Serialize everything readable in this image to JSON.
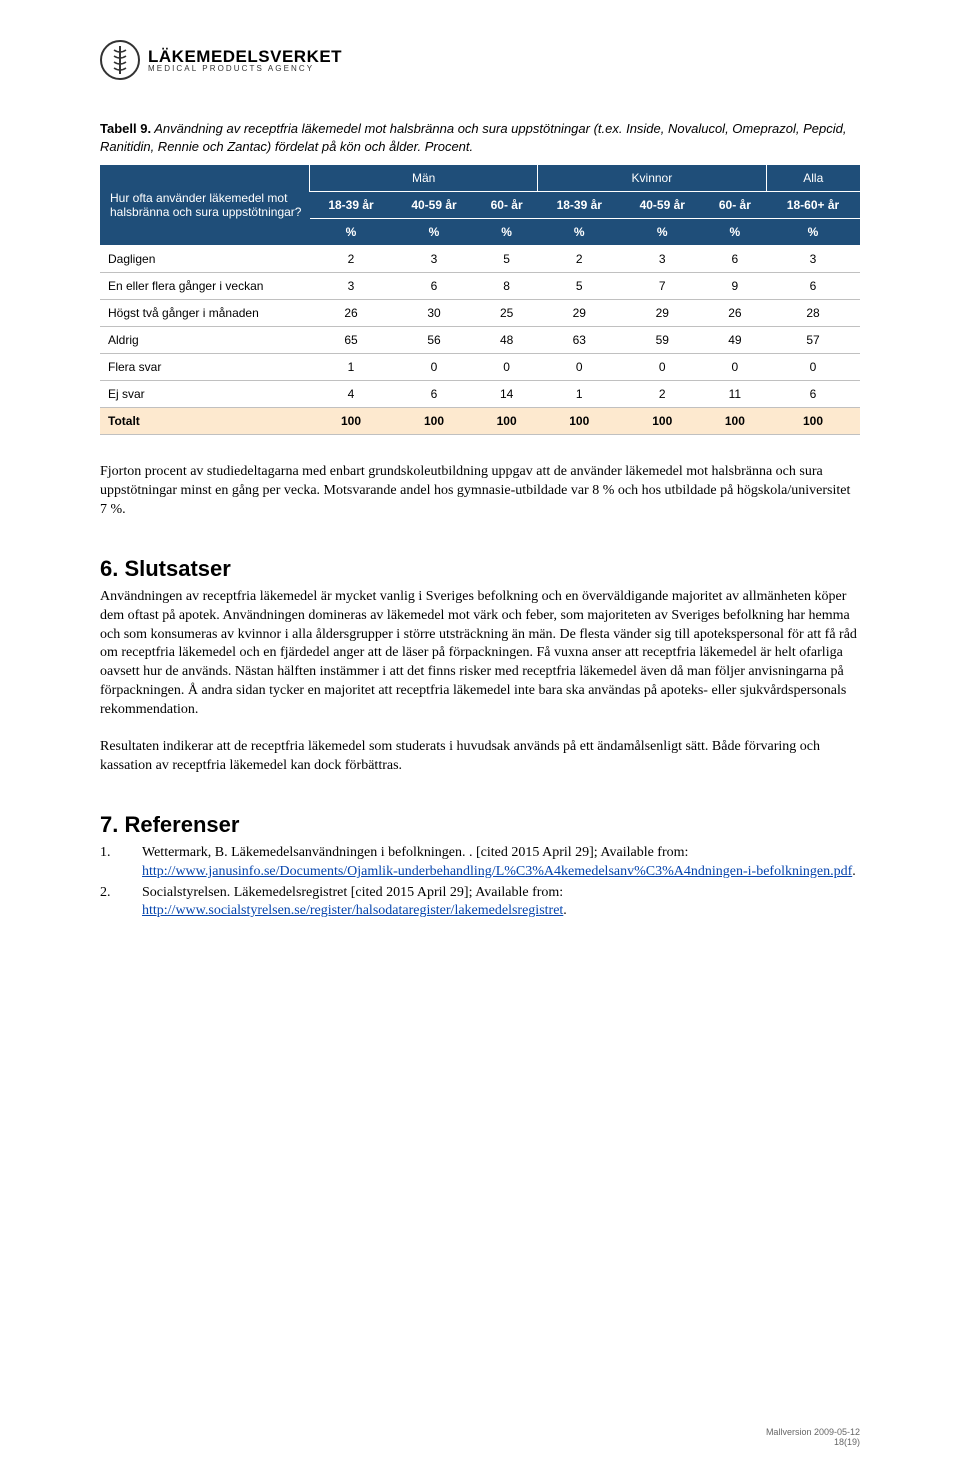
{
  "logo": {
    "brand": "LÄKEMEDELSVERKET",
    "sub": "MEDICAL PRODUCTS AGENCY"
  },
  "caption": {
    "bold": "Tabell 9.",
    "rest": " Användning av receptfria läkemedel mot halsbränna och sura uppstötningar (t.ex. Inside, Novalucol, Omeprazol, Pepcid, Ranitidin, Rennie och Zantac) fördelat på kön och ålder. Procent."
  },
  "table": {
    "header_bg": "#1f4e79",
    "header_fg": "#ffffff",
    "total_bg": "#fde9cf",
    "border_color": "#c0c0c0",
    "stub": "Hur ofta använder läkemedel mot halsbränna och sura uppstötningar?",
    "group_labels": [
      "Män",
      "Kvinnor",
      "Alla"
    ],
    "col_labels": [
      "18-39 år",
      "40-59 år",
      "60- år",
      "18-39 år",
      "40-59 år",
      "60- år",
      "18-60+ år"
    ],
    "unit_row": [
      "%",
      "%",
      "%",
      "%",
      "%",
      "%",
      "%"
    ],
    "rows": [
      {
        "label": "Dagligen",
        "vals": [
          2,
          3,
          5,
          2,
          3,
          6,
          3
        ]
      },
      {
        "label": "En eller flera gånger i veckan",
        "vals": [
          3,
          6,
          8,
          5,
          7,
          9,
          6
        ]
      },
      {
        "label": "Högst två gånger i månaden",
        "vals": [
          26,
          30,
          25,
          29,
          29,
          26,
          28
        ]
      },
      {
        "label": "Aldrig",
        "vals": [
          65,
          56,
          48,
          63,
          59,
          49,
          57
        ]
      },
      {
        "label": "Flera svar",
        "vals": [
          1,
          0,
          0,
          0,
          0,
          0,
          0
        ]
      },
      {
        "label": "Ej svar",
        "vals": [
          4,
          6,
          14,
          1,
          2,
          11,
          6
        ]
      }
    ],
    "total_label": "Totalt",
    "total_vals": [
      100,
      100,
      100,
      100,
      100,
      100,
      100
    ]
  },
  "para1": "Fjorton procent av studiedeltagarna med enbart grundskoleutbildning uppgav att de använder läkemedel mot halsbränna och sura uppstötningar minst en gång per vecka. Motsvarande andel hos gymnasie-utbildade var 8 % och hos utbildade på högskola/universitet 7 %.",
  "section6": {
    "title": "6.   Slutsatser",
    "p1": "Användningen av receptfria läkemedel är mycket vanlig i Sveriges befolkning och en överväldigande majoritet av allmänheten köper dem oftast på apotek. Användningen domineras av läkemedel mot värk och feber, som majoriteten av Sveriges befolkning har hemma och som konsumeras av kvinnor i alla åldersgrupper i större utsträckning än män. De flesta vänder sig till apotekspersonal för att få råd om receptfria läkemedel och en fjärdedel anger att de läser på förpackningen. Få vuxna anser att receptfria läkemedel är helt ofarliga oavsett hur de används. Nästan hälften instämmer i att det finns risker med receptfria läkemedel även då man följer anvisningarna på förpackningen. Å andra sidan tycker en majoritet att receptfria läkemedel inte bara ska användas på apoteks- eller sjukvårdspersonals rekommendation.",
    "p2": "Resultaten indikerar att de receptfria läkemedel som studerats i huvudsak används på ett ändamålsenligt sätt. Både förvaring och kassation av receptfria läkemedel kan dock förbättras."
  },
  "section7": {
    "title": "7.   Referenser",
    "refs": [
      {
        "num": "1.",
        "text_before": "Wettermark, B. Läkemedelsanvändningen i befolkningen. .  [cited 2015 April 29]; Available from: ",
        "link_text": "http://www.janusinfo.se/Documents/Ojamlik-underbehandling/L%C3%A4kemedelsanv%C3%A4ndningen-i-befolkningen.pdf",
        "text_after": "."
      },
      {
        "num": "2.",
        "text_before": "Socialstyrelsen. Läkemedelsregistret [cited 2015 April 29]; Available from: ",
        "link_text": "http://www.socialstyrelsen.se/register/halsodataregister/lakemedelsregistret",
        "text_after": "."
      }
    ]
  },
  "footer": {
    "line1": "Mallversion 2009-05-12",
    "line2": "18(19)"
  }
}
